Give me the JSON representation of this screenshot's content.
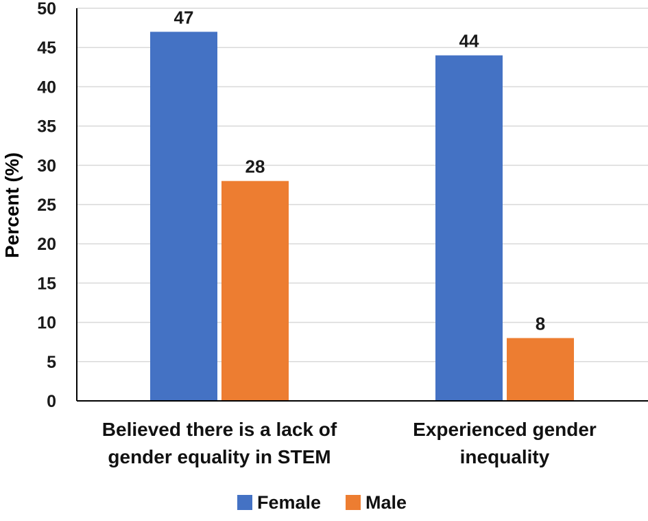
{
  "chart_data": {
    "type": "bar",
    "categories": [
      [
        "Believed there is a lack of",
        "gender equality in STEM"
      ],
      [
        "Experienced gender",
        "inequality"
      ]
    ],
    "series": [
      {
        "name": "Female",
        "values": [
          47,
          44
        ],
        "color": "#4472C4"
      },
      {
        "name": "Male",
        "values": [
          28,
          8
        ],
        "color": "#ED7D31"
      }
    ],
    "ylabel": "Percent (%)",
    "xlabel": "",
    "title": "",
    "ylim": [
      0,
      50
    ],
    "yticks": [
      0,
      5,
      10,
      15,
      20,
      25,
      30,
      35,
      40,
      45,
      50
    ],
    "grid": true,
    "gridline_color": "#D9D9D9",
    "axis_color": "#000000",
    "data_labels": true,
    "legend_position": "bottom"
  }
}
